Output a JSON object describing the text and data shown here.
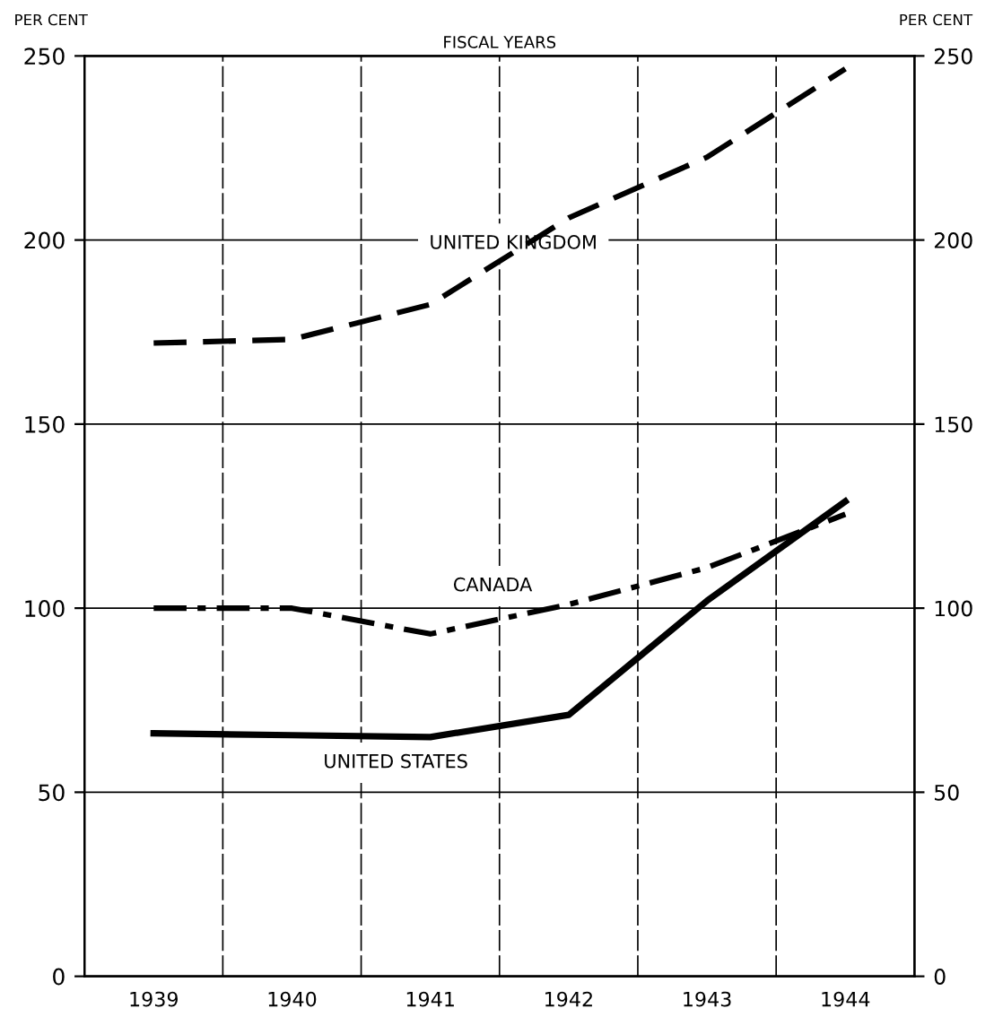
{
  "chart_data": {
    "type": "line",
    "xlabel": "FISCAL YEARS",
    "ylabel": "PER CENT",
    "y2label": "PER CENT",
    "categories": [
      "1939",
      "1940",
      "1941",
      "1942",
      "1943",
      "1944"
    ],
    "series": [
      {
        "name": "UNITED KINGDOM",
        "color": "#000000",
        "line_style": "dashed",
        "values": [
          172,
          173,
          182.5,
          206,
          222.5,
          246.5
        ]
      },
      {
        "name": "CANADA",
        "color": "#000000",
        "line_style": "dashdot",
        "values": [
          100,
          100,
          93,
          101,
          111,
          125.5
        ]
      },
      {
        "name": "UNITED STATES",
        "color": "#000000",
        "line_style": "solid",
        "values": [
          66,
          65.5,
          65,
          71,
          102,
          129
        ]
      }
    ],
    "ylim": [
      0,
      250
    ],
    "yticks": [
      0,
      50,
      100,
      150,
      200,
      250
    ],
    "y2lim": [
      0,
      250
    ],
    "y2ticks": [
      0,
      50,
      100,
      150,
      200,
      250
    ],
    "grid": true,
    "legend": false,
    "marker": "none"
  }
}
